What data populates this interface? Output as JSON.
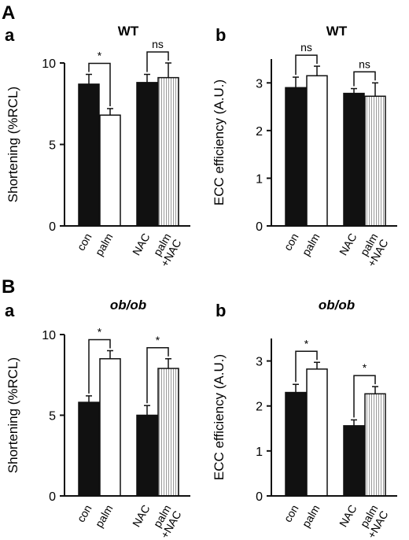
{
  "sections": [
    {
      "letter": "A"
    },
    {
      "letter": "B"
    }
  ],
  "chart_data": [
    {
      "type": "bar",
      "section": "A",
      "panel": "a",
      "title": "WT",
      "ylabel": "Shortening (%RCL)",
      "ylim": [
        0,
        10
      ],
      "yticks": [
        0,
        5,
        10
      ],
      "categories": [
        "con",
        "palm",
        "NAC",
        "palm\n+NAC"
      ],
      "values": [
        8.7,
        6.8,
        8.8,
        9.1
      ],
      "errors": [
        0.6,
        0.4,
        0.5,
        0.9
      ],
      "bar_styles": [
        "filled",
        "open",
        "filled",
        "hatched"
      ],
      "significance": [
        {
          "pair": [
            0,
            1
          ],
          "label": "*"
        },
        {
          "pair": [
            2,
            3
          ],
          "label": "ns"
        }
      ]
    },
    {
      "type": "bar",
      "section": "A",
      "panel": "b",
      "title": "WT",
      "ylabel": "ECC efficiency (A.U.)",
      "ylim": [
        0,
        3.5
      ],
      "yticks": [
        0,
        1,
        2,
        3
      ],
      "categories": [
        "con",
        "palm",
        "NAC",
        "palm\n+NAC"
      ],
      "values": [
        2.9,
        3.15,
        2.78,
        2.72
      ],
      "errors": [
        0.22,
        0.2,
        0.1,
        0.28
      ],
      "bar_styles": [
        "filled",
        "open",
        "filled",
        "hatched"
      ],
      "significance": [
        {
          "pair": [
            0,
            1
          ],
          "label": "ns"
        },
        {
          "pair": [
            2,
            3
          ],
          "label": "ns"
        }
      ]
    },
    {
      "type": "bar",
      "section": "B",
      "panel": "a",
      "title": "ob/ob",
      "ylabel": "Shortening (%RCL)",
      "ylim": [
        0,
        10
      ],
      "yticks": [
        0,
        5,
        10
      ],
      "categories": [
        "con",
        "palm",
        "NAC",
        "palm\n+NAC"
      ],
      "values": [
        5.8,
        8.5,
        5.0,
        7.9
      ],
      "errors": [
        0.4,
        0.5,
        0.6,
        0.6
      ],
      "bar_styles": [
        "filled",
        "open",
        "filled",
        "hatched"
      ],
      "significance": [
        {
          "pair": [
            0,
            1
          ],
          "label": "*"
        },
        {
          "pair": [
            2,
            3
          ],
          "label": "*"
        }
      ]
    },
    {
      "type": "bar",
      "section": "B",
      "panel": "b",
      "title": "ob/ob",
      "ylabel": "ECC efficiency (A.U.)",
      "ylim": [
        0,
        3.5
      ],
      "yticks": [
        0,
        1,
        2,
        3
      ],
      "categories": [
        "con",
        "palm",
        "NAC",
        "palm\n+NAC"
      ],
      "values": [
        2.3,
        2.82,
        1.56,
        2.27
      ],
      "errors": [
        0.18,
        0.15,
        0.13,
        0.16
      ],
      "bar_styles": [
        "filled",
        "open",
        "filled",
        "hatched"
      ],
      "significance": [
        {
          "pair": [
            0,
            1
          ],
          "label": "*"
        },
        {
          "pair": [
            2,
            3
          ],
          "label": "*"
        }
      ]
    }
  ]
}
